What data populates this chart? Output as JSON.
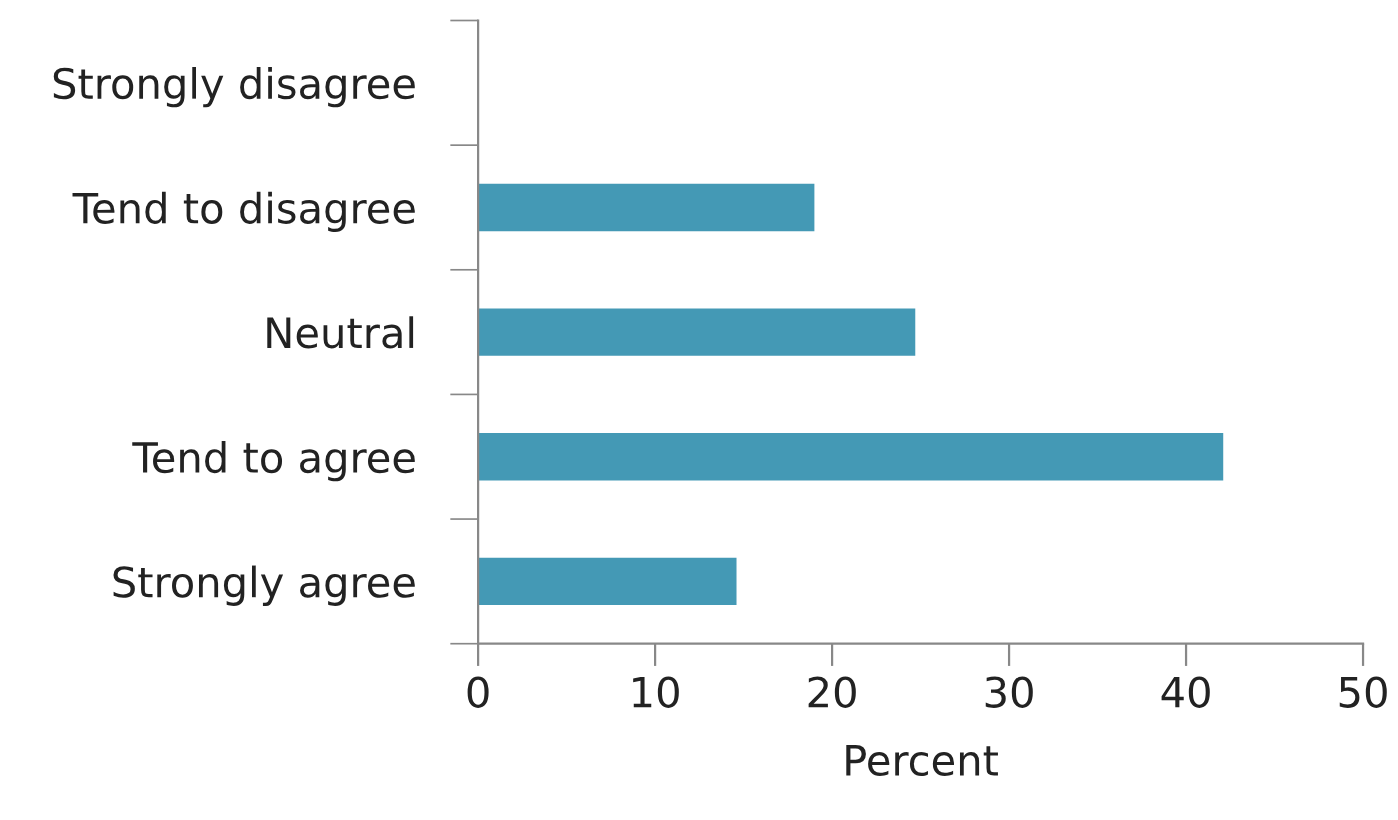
{
  "chart_data": {
    "type": "bar",
    "orientation": "horizontal",
    "categories": [
      "Strongly disagree",
      "Tend to disagree",
      "Neutral",
      "Tend to agree",
      "Strongly agree"
    ],
    "values": [
      0,
      19,
      24.7,
      42.1,
      14.6
    ],
    "color": "#4499b5",
    "xlim": [
      0,
      50
    ],
    "xticks": [
      0,
      10,
      20,
      30,
      40,
      50
    ],
    "xlabel": "Percent",
    "grid": false
  }
}
